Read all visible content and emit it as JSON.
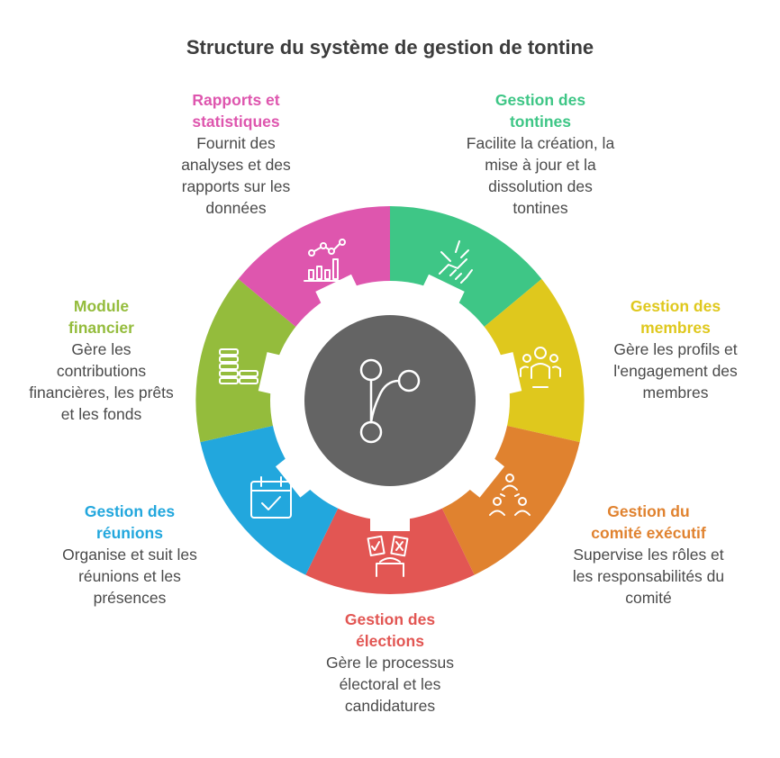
{
  "title": "Structure du système de gestion de tontine",
  "segments": [
    {
      "key": "tontines",
      "title": "Gestion des tontines",
      "desc": "Facilite la création, la mise à jour et la dissolution des tontines",
      "color": "#3ec686",
      "icon": "handshake-icon"
    },
    {
      "key": "membres",
      "title": "Gestion des membres",
      "desc": "Gère les profils et l'engagement des membres",
      "color": "#dfc81d",
      "icon": "members-icon"
    },
    {
      "key": "comite",
      "title": "Gestion du comité exécutif",
      "desc": "Supervise les rôles et les responsabilités du comité",
      "color": "#e0822f",
      "icon": "committee-icon"
    },
    {
      "key": "elections",
      "title": "Gestion des élections",
      "desc": "Gère le processus électoral et les candidatures",
      "color": "#e25653",
      "icon": "ballot-icon"
    },
    {
      "key": "reunions",
      "title": "Gestion des réunions",
      "desc": "Organise et suit les réunions et les présences",
      "color": "#22a7dd",
      "icon": "calendar-check-icon"
    },
    {
      "key": "financier",
      "title": "Module financier",
      "desc": "Gère les contributions financières, les prêts et les fonds",
      "color": "#94bc3c",
      "icon": "coins-icon"
    },
    {
      "key": "rapports",
      "title": "Rapports et statistiques",
      "desc": "Fournit des analyses et des rapports sur les données",
      "color": "#de56ae",
      "icon": "chart-icon"
    }
  ],
  "center": {
    "color": "#646464",
    "icon": "branch-icon"
  }
}
